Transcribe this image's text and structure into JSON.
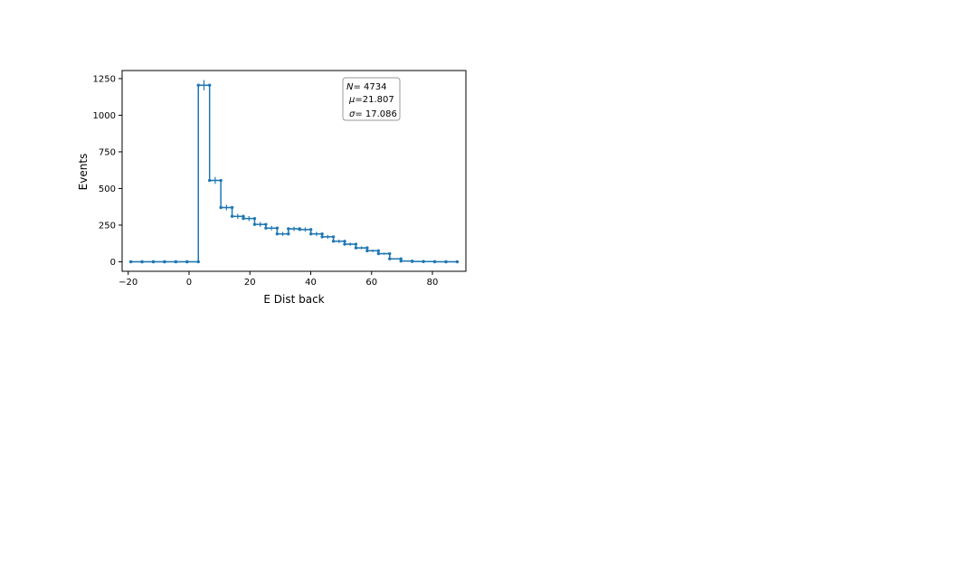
{
  "chart_data": {
    "type": "histogram-step",
    "xlabel": "E Dist back",
    "ylabel": "Events",
    "xlim": [
      -22,
      91
    ],
    "ylim": [
      -65,
      1305
    ],
    "xticks": [
      -20,
      0,
      20,
      40,
      60,
      80
    ],
    "xtick_labels": [
      "−20",
      "0",
      "20",
      "40",
      "60",
      "80"
    ],
    "yticks": [
      0,
      250,
      500,
      750,
      1000,
      1250
    ],
    "ytick_labels": [
      "0",
      "250",
      "500",
      "750",
      "1000",
      "1250"
    ],
    "color": "#1f77b4",
    "bin_width": 3.7,
    "bin_centers": [
      -17.3,
      -13.6,
      -9.9,
      -6.2,
      -2.5,
      1.2,
      4.9,
      8.6,
      12.3,
      16.0,
      19.7,
      23.4,
      27.1,
      30.8,
      34.5,
      38.2,
      41.9,
      45.6,
      49.3,
      53.0,
      56.7,
      60.4,
      64.1,
      67.8,
      71.5,
      75.2,
      78.9,
      82.6,
      86.3
    ],
    "counts": [
      0,
      0,
      0,
      0,
      0,
      0,
      1205,
      555,
      370,
      310,
      295,
      255,
      230,
      190,
      225,
      220,
      190,
      170,
      140,
      120,
      95,
      75,
      55,
      20,
      5,
      2,
      1,
      0,
      0
    ],
    "stats": {
      "n_label": "N",
      "n_value": "= 4734",
      "mu_label": "μ",
      "mu_value": "=21.807",
      "sigma_label": "σ",
      "sigma_value": "= 17.086"
    }
  }
}
